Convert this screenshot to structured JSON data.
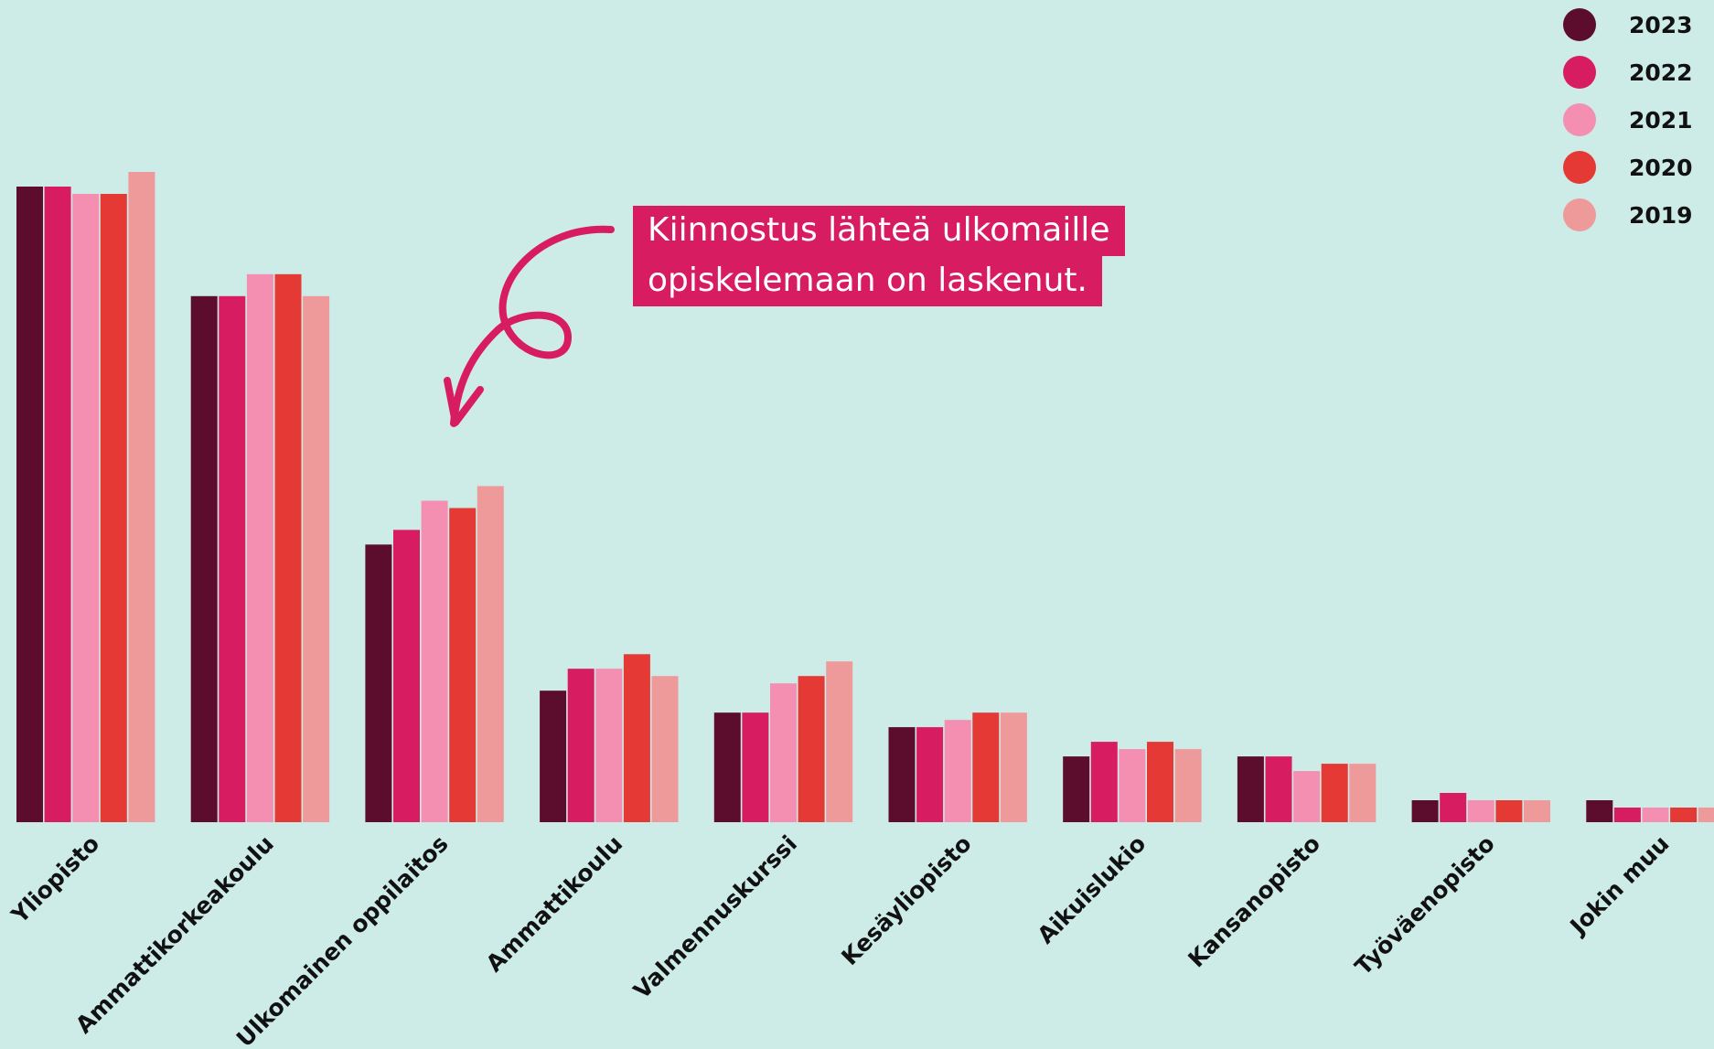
{
  "annotation": {
    "line1": "Kiinnostus lähteä ulkomaille",
    "line2": "opiskelemaan on laskenut."
  },
  "chart_data": {
    "type": "bar",
    "title": "",
    "xlabel": "",
    "ylabel": "",
    "ylim": [
      0,
      90
    ],
    "grid": false,
    "legend_position": "top-right",
    "categories": [
      "Yliopisto",
      "Ammattikorkeakoulu",
      "Ulkomainen oppilaitos",
      "Ammattikoulu",
      "Valmennuskurssi",
      "Kesäyliopisto",
      "Aikuislukio",
      "Kansanopisto",
      "Työväenopisto",
      "Jokin muu"
    ],
    "series": [
      {
        "name": "2023",
        "color": "#5c0c2d",
        "values": [
          87,
          72,
          38,
          18,
          15,
          13,
          9,
          9,
          3,
          3
        ]
      },
      {
        "name": "2022",
        "color": "#d81c62",
        "values": [
          87,
          72,
          40,
          21,
          15,
          13,
          11,
          9,
          4,
          2
        ]
      },
      {
        "name": "2021",
        "color": "#f48fb1",
        "values": [
          86,
          75,
          44,
          21,
          19,
          14,
          10,
          7,
          3,
          2
        ]
      },
      {
        "name": "2020",
        "color": "#e53935",
        "values": [
          86,
          75,
          43,
          23,
          20,
          15,
          11,
          8,
          3,
          2
        ]
      },
      {
        "name": "2019",
        "color": "#ef9a9a",
        "values": [
          89,
          72,
          46,
          20,
          22,
          15,
          10,
          8,
          3,
          2
        ]
      }
    ]
  }
}
